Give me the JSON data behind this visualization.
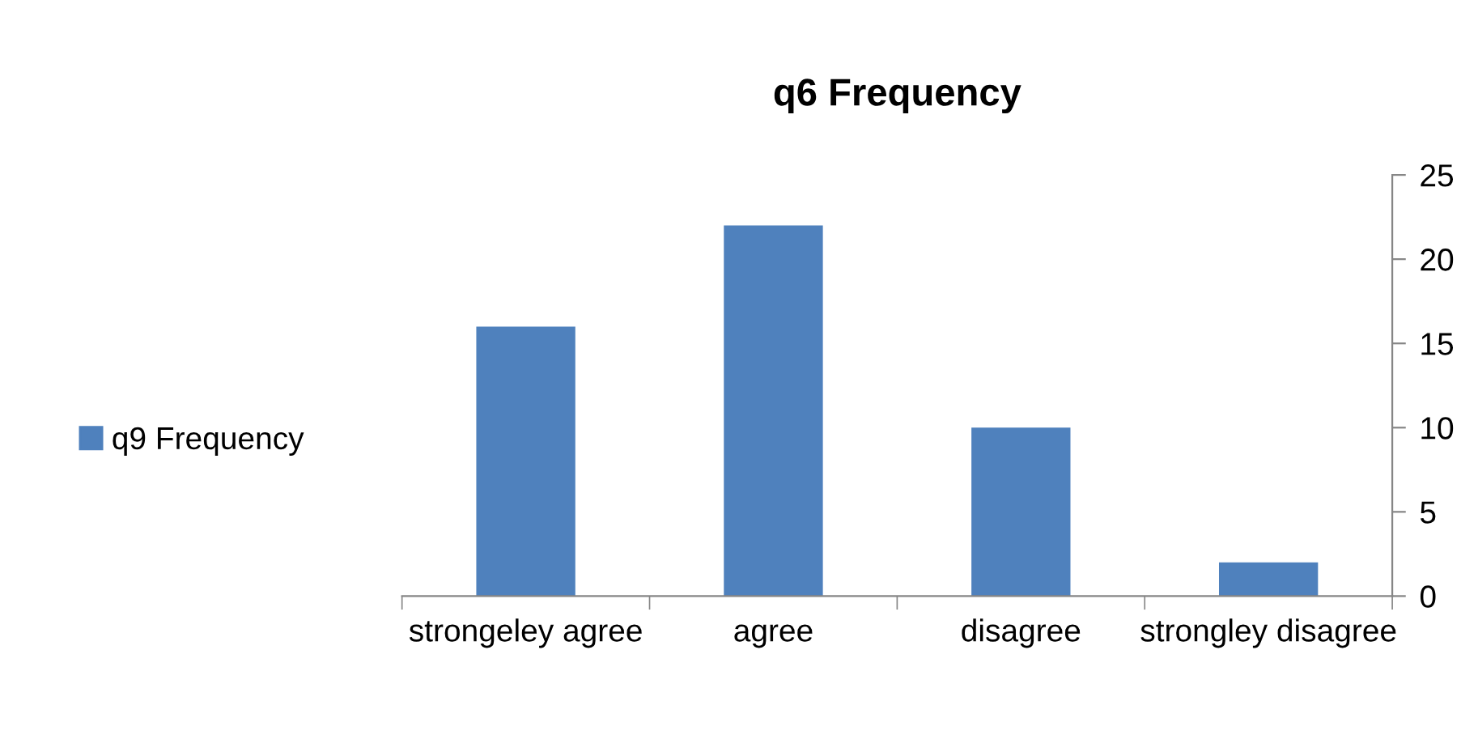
{
  "chart_data": {
    "type": "bar",
    "title": "q6 Frequency",
    "categories": [
      "strongeley agree",
      "agree",
      "disagree",
      "strongley disagree"
    ],
    "series": [
      {
        "name": "q9 Frequency",
        "color": "#4f81bd",
        "values": [
          16,
          22,
          10,
          2
        ]
      }
    ],
    "ylim": [
      0,
      25
    ],
    "yticks": [
      0,
      5,
      10,
      15,
      20,
      25
    ],
    "grid": false,
    "legend": "left"
  }
}
